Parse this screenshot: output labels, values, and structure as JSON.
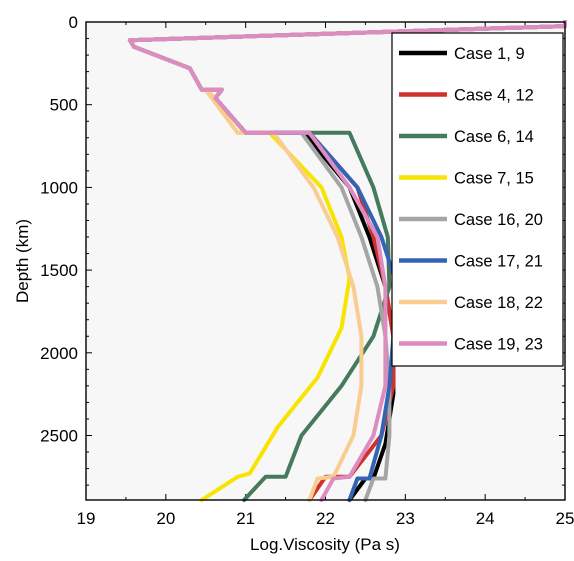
{
  "chart_data": {
    "type": "line",
    "xlabel": "Log.Viscosity (Pa s)",
    "ylabel": "Depth (km)",
    "xlim": [
      19,
      25
    ],
    "ylim": [
      0,
      2890
    ],
    "y_inverted": true,
    "xticks": [
      19,
      20,
      21,
      22,
      23,
      24,
      25
    ],
    "yticks": [
      0,
      500,
      1000,
      1500,
      2000,
      2500
    ],
    "background": "#f7f7f7",
    "grid": false,
    "legend_position": "top-right",
    "shared_upper_mantle": [
      {
        "x": 25.0,
        "y": 0
      },
      {
        "x": 25.0,
        "y": 25
      },
      {
        "x": 19.55,
        "y": 110
      },
      {
        "x": 19.6,
        "y": 150
      },
      {
        "x": 20.3,
        "y": 280
      },
      {
        "x": 20.45,
        "y": 410
      },
      {
        "x": 20.7,
        "y": 410
      },
      {
        "x": 20.62,
        "y": 460
      }
    ],
    "series": [
      {
        "name": "Case 1, 9",
        "color": "#000000",
        "points": [
          [
            20.62,
            460
          ],
          [
            21.0,
            670
          ],
          [
            21.73,
            670
          ],
          [
            22.3,
            1000
          ],
          [
            22.55,
            1300
          ],
          [
            22.75,
            1600
          ],
          [
            22.85,
            1900
          ],
          [
            22.85,
            2250
          ],
          [
            22.75,
            2550
          ],
          [
            22.6,
            2760
          ],
          [
            22.5,
            2760
          ],
          [
            22.3,
            2890
          ]
        ]
      },
      {
        "name": "Case 4, 12",
        "color": "#d0302b",
        "points": [
          [
            20.62,
            460
          ],
          [
            21.0,
            670
          ],
          [
            21.8,
            670
          ],
          [
            22.4,
            1000
          ],
          [
            22.6,
            1300
          ],
          [
            22.75,
            1600
          ],
          [
            22.85,
            1900
          ],
          [
            22.85,
            2200
          ],
          [
            22.7,
            2500
          ],
          [
            22.3,
            2750
          ],
          [
            22.0,
            2750
          ],
          [
            21.8,
            2890
          ]
        ]
      },
      {
        "name": "Case 6, 14",
        "color": "#457a5c",
        "points": [
          [
            20.62,
            460
          ],
          [
            21.0,
            670
          ],
          [
            22.3,
            670
          ],
          [
            22.6,
            1000
          ],
          [
            22.78,
            1300
          ],
          [
            22.8,
            1600
          ],
          [
            22.6,
            1900
          ],
          [
            22.2,
            2200
          ],
          [
            21.7,
            2500
          ],
          [
            21.5,
            2750
          ],
          [
            21.25,
            2750
          ],
          [
            20.98,
            2890
          ]
        ]
      },
      {
        "name": "Case 7, 15",
        "color": "#f7e400",
        "points": [
          [
            20.5,
            410
          ],
          [
            20.9,
            670
          ],
          [
            21.3,
            670
          ],
          [
            21.95,
            1000
          ],
          [
            22.2,
            1300
          ],
          [
            22.3,
            1550
          ],
          [
            22.2,
            1850
          ],
          [
            21.9,
            2150
          ],
          [
            21.4,
            2450
          ],
          [
            21.05,
            2730
          ],
          [
            20.9,
            2750
          ],
          [
            20.45,
            2890
          ]
        ]
      },
      {
        "name": "Case 16, 20",
        "color": "#a5a5a5",
        "points": [
          [
            20.62,
            460
          ],
          [
            21.0,
            670
          ],
          [
            21.7,
            670
          ],
          [
            22.2,
            1000
          ],
          [
            22.45,
            1300
          ],
          [
            22.65,
            1600
          ],
          [
            22.75,
            1900
          ],
          [
            22.8,
            2200
          ],
          [
            22.8,
            2500
          ],
          [
            22.75,
            2760
          ],
          [
            22.6,
            2760
          ],
          [
            22.5,
            2890
          ]
        ]
      },
      {
        "name": "Case 17, 21",
        "color": "#3563b4",
        "points": [
          [
            20.62,
            460
          ],
          [
            21.0,
            670
          ],
          [
            21.8,
            670
          ],
          [
            22.4,
            1000
          ],
          [
            22.7,
            1300
          ],
          [
            22.9,
            1600
          ],
          [
            22.85,
            1900
          ],
          [
            22.8,
            2200
          ],
          [
            22.7,
            2500
          ],
          [
            22.55,
            2760
          ],
          [
            22.4,
            2760
          ],
          [
            22.3,
            2890
          ]
        ]
      },
      {
        "name": "Case 18, 22",
        "color": "#f9cd8f",
        "points": [
          [
            20.5,
            410
          ],
          [
            20.9,
            670
          ],
          [
            21.35,
            670
          ],
          [
            21.85,
            1000
          ],
          [
            22.15,
            1300
          ],
          [
            22.35,
            1600
          ],
          [
            22.45,
            1900
          ],
          [
            22.45,
            2200
          ],
          [
            22.35,
            2500
          ],
          [
            22.1,
            2750
          ],
          [
            21.9,
            2760
          ],
          [
            21.8,
            2890
          ]
        ]
      },
      {
        "name": "Case 19, 23",
        "color": "#dc8cc0",
        "points": [
          [
            20.62,
            460
          ],
          [
            21.0,
            670
          ],
          [
            21.8,
            670
          ],
          [
            22.3,
            1000
          ],
          [
            22.65,
            1300
          ],
          [
            22.75,
            1600
          ],
          [
            22.75,
            1900
          ],
          [
            22.75,
            2200
          ],
          [
            22.6,
            2500
          ],
          [
            22.3,
            2750
          ],
          [
            22.1,
            2760
          ],
          [
            21.95,
            2890
          ]
        ]
      }
    ]
  }
}
